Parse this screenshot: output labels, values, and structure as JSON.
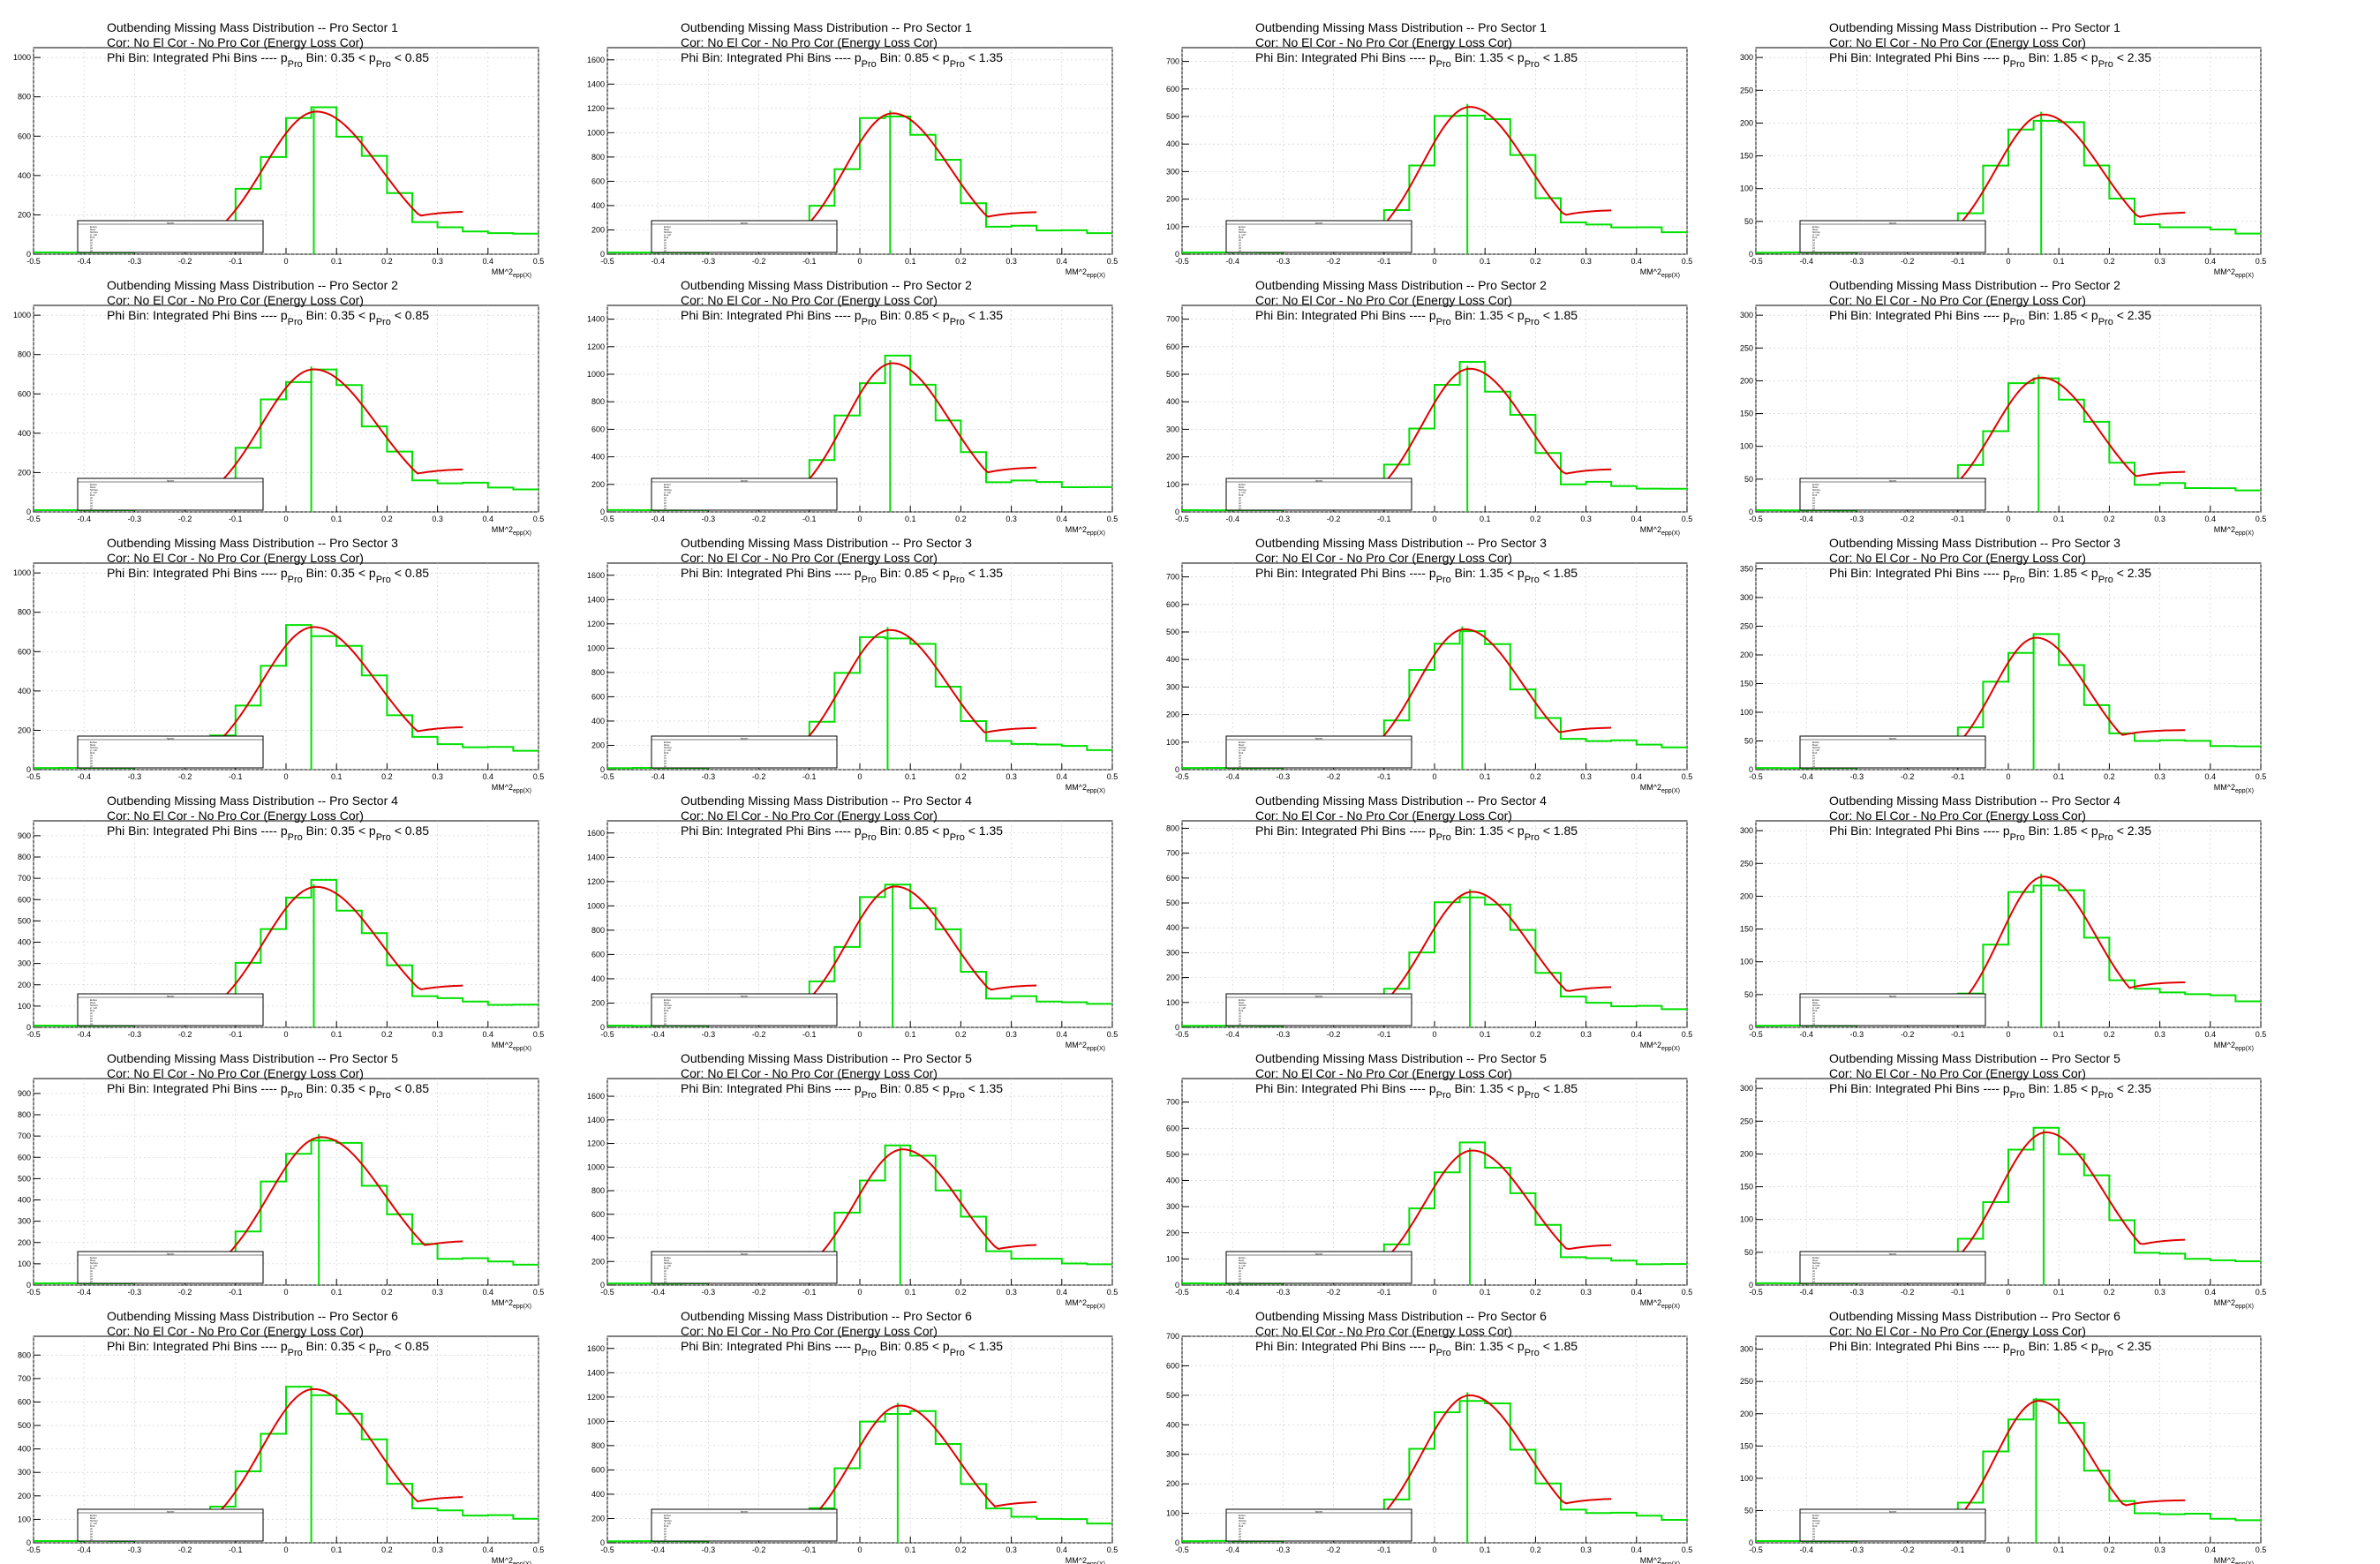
{
  "figure": {
    "title_template": "Outbending Missing Mass Distribution -- Pro Sector {sector}",
    "line2": "Cor: No El Cor - No Pro Cor (Energy Loss Cor)",
    "line3_prefix": "Phi Bin: Integrated Phi Bins  ---- p",
    "line3_sub": "Pro",
    "line3_mid": " Bin: ",
    "xlabel_main": "MM^2",
    "xlabel_sub": "epp(X)",
    "stats_header": "hgram",
    "stats_rows": [
      "Entries",
      "Mean",
      "Std Dev",
      "χ² / ndf",
      "Prob",
      "p0",
      "p1",
      "p2",
      "p3",
      "p4"
    ],
    "colors": {
      "histogram": "#00e000",
      "fit": "#e00000",
      "axis": "#000000",
      "grid": "#c8c8c8"
    }
  },
  "chart_data": {
    "type": "histogram-grid",
    "layout": "6 rows (sectors) x 4 columns (momentum bins)",
    "x": [
      -0.475,
      -0.425,
      -0.375,
      -0.325,
      -0.275,
      -0.225,
      -0.175,
      -0.125,
      -0.075,
      -0.025,
      0.025,
      0.075,
      0.125,
      0.175,
      0.225,
      0.275,
      0.325,
      0.375,
      0.425,
      0.475
    ],
    "xlim": [
      -0.5,
      0.5
    ],
    "xticks": [
      -0.5,
      -0.4,
      -0.3,
      -0.2,
      -0.1,
      0,
      0.1,
      0.2,
      0.3,
      0.4,
      0.5
    ],
    "fit_range": [
      -0.2,
      0.35
    ],
    "bins": [
      {
        "label": "0.35 < p",
        "label_sub": "Pro",
        "label_end": " < 0.85",
        "shape_scale": 1.0
      },
      {
        "label": "0.85 < p",
        "label_sub": "Pro",
        "label_end": " < 1.35",
        "shape_scale": 1.0
      },
      {
        "label": "1.35 < p",
        "label_sub": "Pro",
        "label_end": " < 1.85",
        "shape_scale": 1.0
      },
      {
        "label": "1.85 < p",
        "label_sub": "Pro",
        "label_end": " < 2.35",
        "shape_scale": 1.0
      }
    ],
    "panels": [
      {
        "sector": 1,
        "col": 0,
        "ymax": 1050,
        "ystep": 200,
        "peak": 725,
        "mean": 0.06,
        "sigma": 0.11,
        "tail": 0.3
      },
      {
        "sector": 1,
        "col": 1,
        "ymax": 1700,
        "ystep": 200,
        "peak": 1160,
        "mean": 0.065,
        "sigma": 0.1,
        "tail": 0.33
      },
      {
        "sector": 1,
        "col": 2,
        "ymax": 750,
        "ystep": 100,
        "peak": 535,
        "mean": 0.07,
        "sigma": 0.1,
        "tail": 0.35
      },
      {
        "sector": 1,
        "col": 3,
        "ymax": 315,
        "ystep": 50,
        "peak": 213,
        "mean": 0.07,
        "sigma": 0.1,
        "tail": 0.35
      },
      {
        "sector": 2,
        "col": 0,
        "ymax": 1050,
        "ystep": 200,
        "peak": 725,
        "mean": 0.055,
        "sigma": 0.11,
        "tail": 0.36
      },
      {
        "sector": 2,
        "col": 1,
        "ymax": 1500,
        "ystep": 200,
        "peak": 1080,
        "mean": 0.065,
        "sigma": 0.1,
        "tail": 0.36
      },
      {
        "sector": 2,
        "col": 2,
        "ymax": 750,
        "ystep": 100,
        "peak": 520,
        "mean": 0.07,
        "sigma": 0.1,
        "tail": 0.34
      },
      {
        "sector": 2,
        "col": 3,
        "ymax": 315,
        "ystep": 50,
        "peak": 205,
        "mean": 0.065,
        "sigma": 0.1,
        "tail": 0.35
      },
      {
        "sector": 3,
        "col": 0,
        "ymax": 1050,
        "ystep": 200,
        "peak": 725,
        "mean": 0.055,
        "sigma": 0.11,
        "tail": 0.3
      },
      {
        "sector": 3,
        "col": 1,
        "ymax": 1700,
        "ystep": 200,
        "peak": 1150,
        "mean": 0.06,
        "sigma": 0.1,
        "tail": 0.33
      },
      {
        "sector": 3,
        "col": 2,
        "ymax": 750,
        "ystep": 100,
        "peak": 510,
        "mean": 0.06,
        "sigma": 0.1,
        "tail": 0.37
      },
      {
        "sector": 3,
        "col": 3,
        "ymax": 360,
        "ystep": 50,
        "peak": 230,
        "mean": 0.055,
        "sigma": 0.09,
        "tail": 0.39
      },
      {
        "sector": 4,
        "col": 0,
        "ymax": 970,
        "ystep": 100,
        "peak": 660,
        "mean": 0.06,
        "sigma": 0.11,
        "tail": 0.34
      },
      {
        "sector": 4,
        "col": 1,
        "ymax": 1700,
        "ystep": 200,
        "peak": 1160,
        "mean": 0.07,
        "sigma": 0.1,
        "tail": 0.36
      },
      {
        "sector": 4,
        "col": 2,
        "ymax": 830,
        "ystep": 100,
        "peak": 545,
        "mean": 0.075,
        "sigma": 0.1,
        "tail": 0.3
      },
      {
        "sector": 4,
        "col": 3,
        "ymax": 315,
        "ystep": 50,
        "peak": 230,
        "mean": 0.07,
        "sigma": 0.09,
        "tail": 0.42
      },
      {
        "sector": 5,
        "col": 0,
        "ymax": 970,
        "ystep": 100,
        "peak": 695,
        "mean": 0.07,
        "sigma": 0.11,
        "tail": 0.32
      },
      {
        "sector": 5,
        "col": 1,
        "ymax": 1750,
        "ystep": 200,
        "peak": 1150,
        "mean": 0.085,
        "sigma": 0.1,
        "tail": 0.34
      },
      {
        "sector": 5,
        "col": 2,
        "ymax": 790,
        "ystep": 100,
        "peak": 515,
        "mean": 0.075,
        "sigma": 0.1,
        "tail": 0.33
      },
      {
        "sector": 5,
        "col": 3,
        "ymax": 315,
        "ystep": 50,
        "peak": 233,
        "mean": 0.075,
        "sigma": 0.1,
        "tail": 0.33
      },
      {
        "sector": 6,
        "col": 0,
        "ymax": 880,
        "ystep": 100,
        "peak": 655,
        "mean": 0.055,
        "sigma": 0.11,
        "tail": 0.35
      },
      {
        "sector": 6,
        "col": 1,
        "ymax": 1700,
        "ystep": 200,
        "peak": 1130,
        "mean": 0.08,
        "sigma": 0.1,
        "tail": 0.33
      },
      {
        "sector": 6,
        "col": 2,
        "ymax": 700,
        "ystep": 100,
        "peak": 500,
        "mean": 0.07,
        "sigma": 0.1,
        "tail": 0.37
      },
      {
        "sector": 6,
        "col": 3,
        "ymax": 320,
        "ystep": 50,
        "peak": 220,
        "mean": 0.06,
        "sigma": 0.09,
        "tail": 0.36
      }
    ]
  }
}
